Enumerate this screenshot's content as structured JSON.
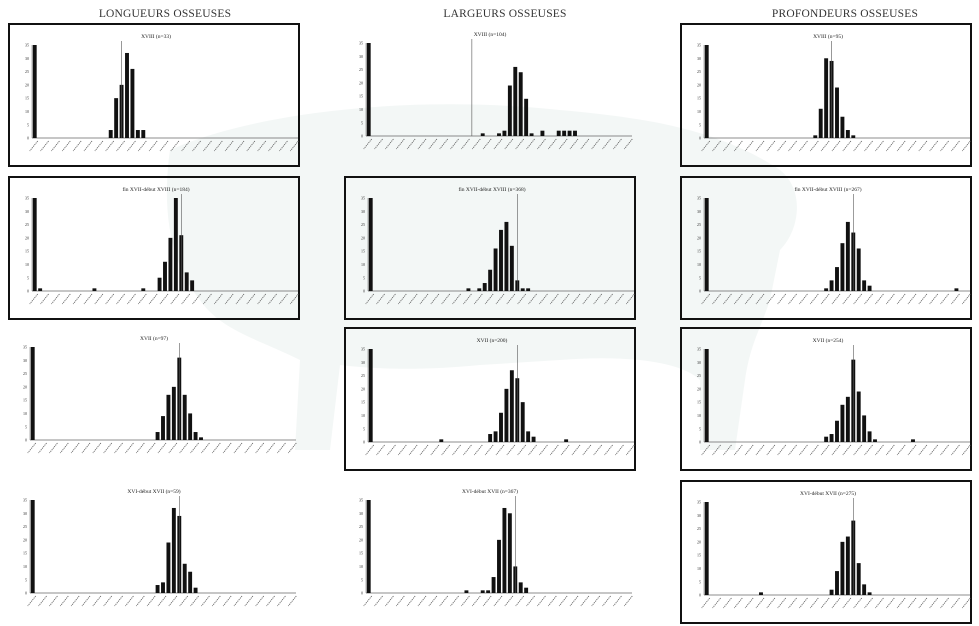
{
  "columns": [
    {
      "title": "LONGUEURS OSSEUSES"
    },
    {
      "title": "LARGEURS OSSEUSES"
    },
    {
      "title": "PROFONDEURS OSSEUSES"
    }
  ],
  "colors": {
    "bars": "#111111",
    "axis": "#666666",
    "frame": "#111111",
    "watermark": "#e9f1ef"
  },
  "chart_data": [
    {
      "type": "bar",
      "column": "LONGUEURS OSSEUSES",
      "title": "XVIII (n=33)",
      "framed": true,
      "ylim": [
        0,
        35
      ],
      "yticks": [
        0,
        5,
        10,
        15,
        20,
        25,
        30,
        35
      ],
      "marker": 16,
      "values": [
        35,
        0,
        0,
        0,
        0,
        0,
        0,
        0,
        0,
        0,
        0,
        0,
        0,
        0,
        3,
        15,
        20,
        32,
        26,
        3,
        3,
        0,
        0,
        0,
        0,
        0,
        0,
        0,
        0,
        0,
        0,
        0,
        0,
        0,
        0,
        0,
        0,
        0,
        0,
        0,
        0,
        0,
        0,
        0,
        0,
        0,
        0,
        0,
        0
      ]
    },
    {
      "type": "bar",
      "column": "LARGEURS OSSEUSES",
      "title": "XVIII (n=104)",
      "framed": false,
      "ylim": [
        0,
        35
      ],
      "yticks": [
        0,
        5,
        10,
        15,
        20,
        25,
        30,
        35
      ],
      "marker": 19,
      "values": [
        35,
        0,
        0,
        0,
        0,
        0,
        0,
        0,
        0,
        0,
        0,
        0,
        0,
        0,
        0,
        0,
        0,
        0,
        0,
        0,
        0,
        1,
        0,
        0,
        1,
        2,
        19,
        26,
        24,
        14,
        1,
        0,
        2,
        0,
        0,
        2,
        2,
        2,
        2,
        0,
        0,
        0,
        0,
        0,
        0,
        0,
        0,
        0,
        0
      ]
    },
    {
      "type": "bar",
      "column": "PROFONDEURS OSSEUSES",
      "title": "XVIII (n=95)",
      "framed": true,
      "ylim": [
        0,
        35
      ],
      "yticks": [
        0,
        5,
        10,
        15,
        20,
        25,
        30,
        35
      ],
      "marker": 23,
      "values": [
        35,
        0,
        0,
        0,
        0,
        0,
        0,
        0,
        0,
        0,
        0,
        0,
        0,
        0,
        0,
        0,
        0,
        0,
        0,
        0,
        1,
        11,
        30,
        29,
        19,
        8,
        3,
        1,
        0,
        0,
        0,
        0,
        0,
        0,
        0,
        0,
        0,
        0,
        0,
        0,
        0,
        0,
        0,
        0,
        0,
        0,
        0,
        0,
        0
      ]
    },
    {
      "type": "bar",
      "column": "LONGUEURS OSSEUSES",
      "title": "fin XVII-début XVIII (n=184)",
      "framed": true,
      "ylim": [
        0,
        35
      ],
      "yticks": [
        0,
        5,
        10,
        15,
        20,
        25,
        30,
        35
      ],
      "marker": 27,
      "values": [
        35,
        1,
        0,
        0,
        0,
        0,
        0,
        0,
        0,
        0,
        0,
        1,
        0,
        0,
        0,
        0,
        0,
        0,
        0,
        0,
        1,
        0,
        0,
        5,
        11,
        20,
        35,
        21,
        7,
        4,
        0,
        0,
        0,
        0,
        0,
        0,
        0,
        0,
        0,
        0,
        0,
        0,
        0,
        0,
        0,
        0,
        0,
        0,
        0
      ]
    },
    {
      "type": "bar",
      "column": "LARGEURS OSSEUSES",
      "title": "fin XVII-début XVIII (n=368)",
      "framed": true,
      "ylim": [
        0,
        35
      ],
      "yticks": [
        0,
        5,
        10,
        15,
        20,
        25,
        30,
        35
      ],
      "marker": 27,
      "values": [
        35,
        0,
        0,
        0,
        0,
        0,
        0,
        0,
        0,
        0,
        0,
        0,
        0,
        0,
        0,
        0,
        0,
        0,
        1,
        0,
        1,
        3,
        8,
        16,
        23,
        26,
        17,
        4,
        1,
        1,
        0,
        0,
        0,
        0,
        0,
        0,
        0,
        0,
        0,
        0,
        0,
        0,
        0,
        0,
        0,
        0,
        0,
        0,
        0
      ]
    },
    {
      "type": "bar",
      "column": "PROFONDEURS OSSEUSES",
      "title": "fin XVII-début XVIII (n=267)",
      "framed": true,
      "ylim": [
        0,
        35
      ],
      "yticks": [
        0,
        5,
        10,
        15,
        20,
        25,
        30,
        35
      ],
      "marker": 27,
      "values": [
        35,
        0,
        0,
        0,
        0,
        0,
        0,
        0,
        0,
        0,
        0,
        0,
        0,
        0,
        0,
        0,
        0,
        0,
        0,
        0,
        0,
        0,
        1,
        4,
        9,
        18,
        26,
        22,
        16,
        4,
        2,
        0,
        0,
        0,
        0,
        0,
        0,
        0,
        0,
        0,
        0,
        0,
        0,
        0,
        0,
        0,
        1,
        0,
        0
      ]
    },
    {
      "type": "bar",
      "column": "LONGUEURS OSSEUSES",
      "title": "XVII (n=97)",
      "framed": false,
      "ylim": [
        0,
        35
      ],
      "yticks": [
        0,
        5,
        10,
        15,
        20,
        25,
        30,
        35
      ],
      "marker": 27,
      "values": [
        35,
        0,
        0,
        0,
        0,
        0,
        0,
        0,
        0,
        0,
        0,
        0,
        0,
        0,
        0,
        0,
        0,
        0,
        0,
        0,
        0,
        0,
        0,
        3,
        9,
        17,
        20,
        31,
        17,
        10,
        3,
        1,
        0,
        0,
        0,
        0,
        0,
        0,
        0,
        0,
        0,
        0,
        0,
        0,
        0,
        0,
        0,
        0,
        0
      ]
    },
    {
      "type": "bar",
      "column": "LARGEURS OSSEUSES",
      "title": "XVII (n=200)",
      "framed": true,
      "ylim": [
        0,
        35
      ],
      "yticks": [
        0,
        5,
        10,
        15,
        20,
        25,
        30,
        35
      ],
      "marker": 27,
      "values": [
        35,
        0,
        0,
        0,
        0,
        0,
        0,
        0,
        0,
        0,
        0,
        0,
        0,
        1,
        0,
        0,
        0,
        0,
        0,
        0,
        0,
        0,
        3,
        4,
        11,
        20,
        27,
        24,
        15,
        4,
        2,
        0,
        0,
        0,
        0,
        0,
        1,
        0,
        0,
        0,
        0,
        0,
        0,
        0,
        0,
        0,
        0,
        0,
        0
      ]
    },
    {
      "type": "bar",
      "column": "PROFONDEURS OSSEUSES",
      "title": "XVII (n=254)",
      "framed": true,
      "ylim": [
        0,
        35
      ],
      "yticks": [
        0,
        5,
        10,
        15,
        20,
        25,
        30,
        35
      ],
      "marker": 27,
      "values": [
        35,
        0,
        0,
        0,
        0,
        0,
        0,
        0,
        0,
        0,
        0,
        0,
        0,
        0,
        0,
        0,
        0,
        0,
        0,
        0,
        0,
        0,
        2,
        3,
        8,
        14,
        17,
        31,
        19,
        10,
        4,
        1,
        0,
        0,
        0,
        0,
        0,
        0,
        1,
        0,
        0,
        0,
        0,
        0,
        0,
        0,
        0,
        0,
        0
      ]
    },
    {
      "type": "bar",
      "column": "LONGUEURS OSSEUSES",
      "title": "XVI-début XVII (n=59)",
      "framed": false,
      "ylim": [
        0,
        35
      ],
      "yticks": [
        0,
        5,
        10,
        15,
        20,
        25,
        30,
        35
      ],
      "marker": 27,
      "values": [
        35,
        0,
        0,
        0,
        0,
        0,
        0,
        0,
        0,
        0,
        0,
        0,
        0,
        0,
        0,
        0,
        0,
        0,
        0,
        0,
        0,
        0,
        0,
        3,
        4,
        19,
        32,
        29,
        11,
        8,
        2,
        0,
        0,
        0,
        0,
        0,
        0,
        0,
        0,
        0,
        0,
        0,
        0,
        0,
        0,
        0,
        0,
        0,
        0
      ]
    },
    {
      "type": "bar",
      "column": "LARGEURS OSSEUSES",
      "title": "XVI-début XVII (n=367)",
      "framed": false,
      "ylim": [
        0,
        35
      ],
      "yticks": [
        0,
        5,
        10,
        15,
        20,
        25,
        30,
        35
      ],
      "marker": 27,
      "values": [
        35,
        0,
        0,
        0,
        0,
        0,
        0,
        0,
        0,
        0,
        0,
        0,
        0,
        0,
        0,
        0,
        0,
        0,
        1,
        0,
        0,
        1,
        1,
        6,
        20,
        32,
        30,
        10,
        4,
        2,
        0,
        0,
        0,
        0,
        0,
        0,
        0,
        0,
        0,
        0,
        0,
        0,
        0,
        0,
        0,
        0,
        0,
        0,
        0
      ]
    },
    {
      "type": "bar",
      "column": "PROFONDEURS OSSEUSES",
      "title": "XVI-début XVII (n=275)",
      "framed": true,
      "ylim": [
        0,
        35
      ],
      "yticks": [
        0,
        5,
        10,
        15,
        20,
        25,
        30,
        35
      ],
      "marker": 27,
      "values": [
        35,
        0,
        0,
        0,
        0,
        0,
        0,
        0,
        0,
        0,
        1,
        0,
        0,
        0,
        0,
        0,
        0,
        0,
        0,
        0,
        0,
        0,
        0,
        2,
        9,
        20,
        22,
        28,
        12,
        4,
        1,
        0,
        0,
        0,
        0,
        0,
        0,
        0,
        0,
        0,
        0,
        0,
        0,
        0,
        0,
        0,
        0,
        0,
        0
      ]
    }
  ]
}
